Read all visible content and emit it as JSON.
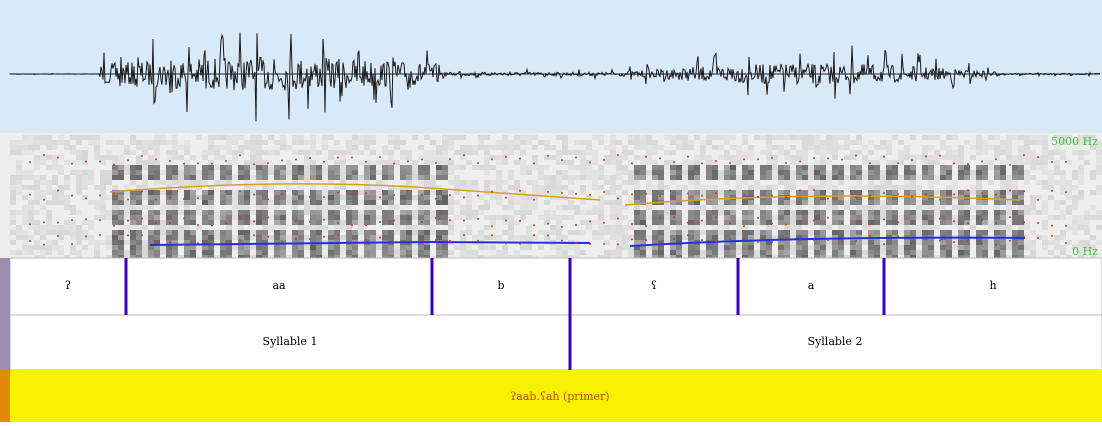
{
  "spectrogram": {
    "freq_labels": [
      "5000 Hz",
      "0 Hz"
    ]
  },
  "tiers": {
    "phones": [
      "ʔ",
      "aa",
      "b",
      "ʕ",
      "a",
      "h"
    ],
    "syllables": [
      "Syllable 1",
      "Syllable 2"
    ],
    "word": "ʔaab.ʕah (primer)"
  }
}
